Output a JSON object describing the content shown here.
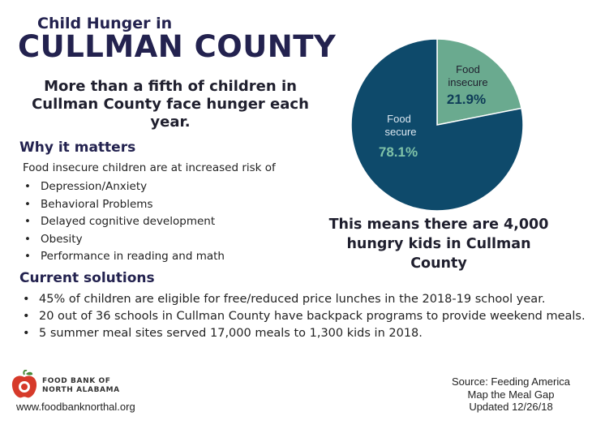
{
  "header": {
    "title_small": "Child Hunger in",
    "title_big": "CULLMAN COUNTY"
  },
  "subhead": "More than a fifth of children in Cullman County face hunger each year.",
  "why": {
    "heading": "Why it matters",
    "intro": "Food insecure children are at increased risk of",
    "items": [
      "Depression/Anxiety",
      "Behavioral Problems",
      "Delayed cognitive development",
      "Obesity",
      "Performance in reading and math"
    ]
  },
  "solutions": {
    "heading": "Current solutions",
    "items": [
      "45% of children are eligible for free/reduced price lunches in the 2018-19 school year.",
      "20 out of 36 schools in Cullman County have backpack programs to provide weekend meals.",
      "5 summer meal sites served 17,000 meals to 1,300 kids in 2018."
    ]
  },
  "means": "This means there are 4,000 hungry kids in Cullman County",
  "source": [
    "Source: Feeding America",
    "Map the Meal Gap",
    "Updated 12/26/18"
  ],
  "org": {
    "name_line1": "FOOD BANK OF",
    "name_line2": "NORTH ALABAMA",
    "url": "www.foodbanknorthal.org"
  },
  "colors": {
    "title": "#23224f",
    "insecure": "#6aaa8f",
    "secure": "#0e4a6b"
  },
  "chart_data": {
    "type": "pie",
    "slices": [
      {
        "label_line1": "Food",
        "label_line2": "insecure",
        "value": 21.9,
        "value_label": "21.9%",
        "color": "#6aaa8f"
      },
      {
        "label_line1": "Food",
        "label_line2": "secure",
        "value": 78.1,
        "value_label": "78.1%",
        "color": "#0e4a6b"
      }
    ]
  }
}
